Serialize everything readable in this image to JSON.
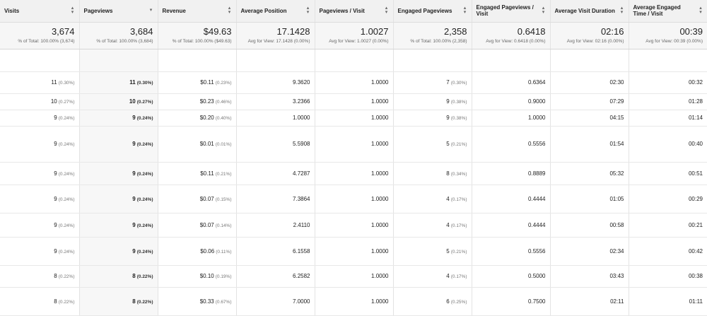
{
  "columns": [
    {
      "label": "Visits",
      "sort": "both"
    },
    {
      "label": "Pageviews",
      "sort": "down"
    },
    {
      "label": "Revenue",
      "sort": "both"
    },
    {
      "label": "Average Position",
      "sort": "both"
    },
    {
      "label": "Pageviews / Visit",
      "sort": "both"
    },
    {
      "label": "Engaged Pageviews",
      "sort": "both"
    },
    {
      "label": "Engaged Pageviews / Visit",
      "sort": "both"
    },
    {
      "label": "Average Visit Duration",
      "sort": "both"
    },
    {
      "label": "Average Engaged Time / Visit",
      "sort": "both"
    }
  ],
  "totals": [
    {
      "value": "3,674",
      "sub": "% of Total: 100.00% (3,674)"
    },
    {
      "value": "3,684",
      "sub": "% of Total: 100.00% (3,684)"
    },
    {
      "value": "$49.63",
      "sub": "% of Total: 100.00% ($49.63)"
    },
    {
      "value": "17.1428",
      "sub": "Avg for View: 17.1428 (0.00%)"
    },
    {
      "value": "1.0027",
      "sub": "Avg for View: 1.0027 (0.00%)"
    },
    {
      "value": "2,358",
      "sub": "% of Total: 100.00% (2,358)"
    },
    {
      "value": "0.6418",
      "sub": "Avg for View: 0.6418 (0.00%)"
    },
    {
      "value": "02:16",
      "sub": "Avg for View: 02:16 (0.00%)"
    },
    {
      "value": "00:39",
      "sub": "Avg for View: 00:39 (0.00%)"
    }
  ],
  "rows": [
    {
      "visits": "11",
      "visits_pct": "(0.30%)",
      "pageviews": "11",
      "pageviews_pct": "(0.30%)",
      "revenue": "$0.11",
      "revenue_pct": "(0.23%)",
      "avg_position": "9.3620",
      "pv_per_visit": "1.0000",
      "engaged_pv": "7",
      "engaged_pv_pct": "(0.30%)",
      "engaged_pv_per_visit": "0.6364",
      "avg_visit_duration": "02:30",
      "avg_engaged_time": "00:32"
    },
    {
      "visits": "10",
      "visits_pct": "(0.27%)",
      "pageviews": "10",
      "pageviews_pct": "(0.27%)",
      "revenue": "$0.23",
      "revenue_pct": "(0.46%)",
      "avg_position": "3.2366",
      "pv_per_visit": "1.0000",
      "engaged_pv": "9",
      "engaged_pv_pct": "(0.38%)",
      "engaged_pv_per_visit": "0.9000",
      "avg_visit_duration": "07:29",
      "avg_engaged_time": "01:28"
    },
    {
      "visits": "9",
      "visits_pct": "(0.24%)",
      "pageviews": "9",
      "pageviews_pct": "(0.24%)",
      "revenue": "$0.20",
      "revenue_pct": "(0.40%)",
      "avg_position": "1.0000",
      "pv_per_visit": "1.0000",
      "engaged_pv": "9",
      "engaged_pv_pct": "(0.38%)",
      "engaged_pv_per_visit": "1.0000",
      "avg_visit_duration": "04:15",
      "avg_engaged_time": "01:14"
    },
    {
      "visits": "9",
      "visits_pct": "(0.24%)",
      "pageviews": "9",
      "pageviews_pct": "(0.24%)",
      "revenue": "$0.01",
      "revenue_pct": "(0.01%)",
      "avg_position": "5.5908",
      "pv_per_visit": "1.0000",
      "engaged_pv": "5",
      "engaged_pv_pct": "(0.21%)",
      "engaged_pv_per_visit": "0.5556",
      "avg_visit_duration": "01:54",
      "avg_engaged_time": "00:40"
    },
    {
      "visits": "9",
      "visits_pct": "(0.24%)",
      "pageviews": "9",
      "pageviews_pct": "(0.24%)",
      "revenue": "$0.11",
      "revenue_pct": "(0.21%)",
      "avg_position": "4.7287",
      "pv_per_visit": "1.0000",
      "engaged_pv": "8",
      "engaged_pv_pct": "(0.34%)",
      "engaged_pv_per_visit": "0.8889",
      "avg_visit_duration": "05:32",
      "avg_engaged_time": "00:51"
    },
    {
      "visits": "9",
      "visits_pct": "(0.24%)",
      "pageviews": "9",
      "pageviews_pct": "(0.24%)",
      "revenue": "$0.07",
      "revenue_pct": "(0.15%)",
      "avg_position": "7.3864",
      "pv_per_visit": "1.0000",
      "engaged_pv": "4",
      "engaged_pv_pct": "(0.17%)",
      "engaged_pv_per_visit": "0.4444",
      "avg_visit_duration": "01:05",
      "avg_engaged_time": "00:29"
    },
    {
      "visits": "9",
      "visits_pct": "(0.24%)",
      "pageviews": "9",
      "pageviews_pct": "(0.24%)",
      "revenue": "$0.07",
      "revenue_pct": "(0.14%)",
      "avg_position": "2.4110",
      "pv_per_visit": "1.0000",
      "engaged_pv": "4",
      "engaged_pv_pct": "(0.17%)",
      "engaged_pv_per_visit": "0.4444",
      "avg_visit_duration": "00:58",
      "avg_engaged_time": "00:21"
    },
    {
      "visits": "9",
      "visits_pct": "(0.24%)",
      "pageviews": "9",
      "pageviews_pct": "(0.24%)",
      "revenue": "$0.06",
      "revenue_pct": "(0.11%)",
      "avg_position": "6.1558",
      "pv_per_visit": "1.0000",
      "engaged_pv": "5",
      "engaged_pv_pct": "(0.21%)",
      "engaged_pv_per_visit": "0.5556",
      "avg_visit_duration": "02:34",
      "avg_engaged_time": "00:42"
    },
    {
      "visits": "8",
      "visits_pct": "(0.22%)",
      "pageviews": "8",
      "pageviews_pct": "(0.22%)",
      "revenue": "$0.10",
      "revenue_pct": "(0.19%)",
      "avg_position": "6.2582",
      "pv_per_visit": "1.0000",
      "engaged_pv": "4",
      "engaged_pv_pct": "(0.17%)",
      "engaged_pv_per_visit": "0.5000",
      "avg_visit_duration": "03:43",
      "avg_engaged_time": "00:38"
    },
    {
      "visits": "8",
      "visits_pct": "(0.22%)",
      "pageviews": "8",
      "pageviews_pct": "(0.22%)",
      "revenue": "$0.33",
      "revenue_pct": "(0.67%)",
      "avg_position": "7.0000",
      "pv_per_visit": "1.0000",
      "engaged_pv": "6",
      "engaged_pv_pct": "(0.25%)",
      "engaged_pv_per_visit": "0.7500",
      "avg_visit_duration": "02:11",
      "avg_engaged_time": "01:11"
    }
  ]
}
